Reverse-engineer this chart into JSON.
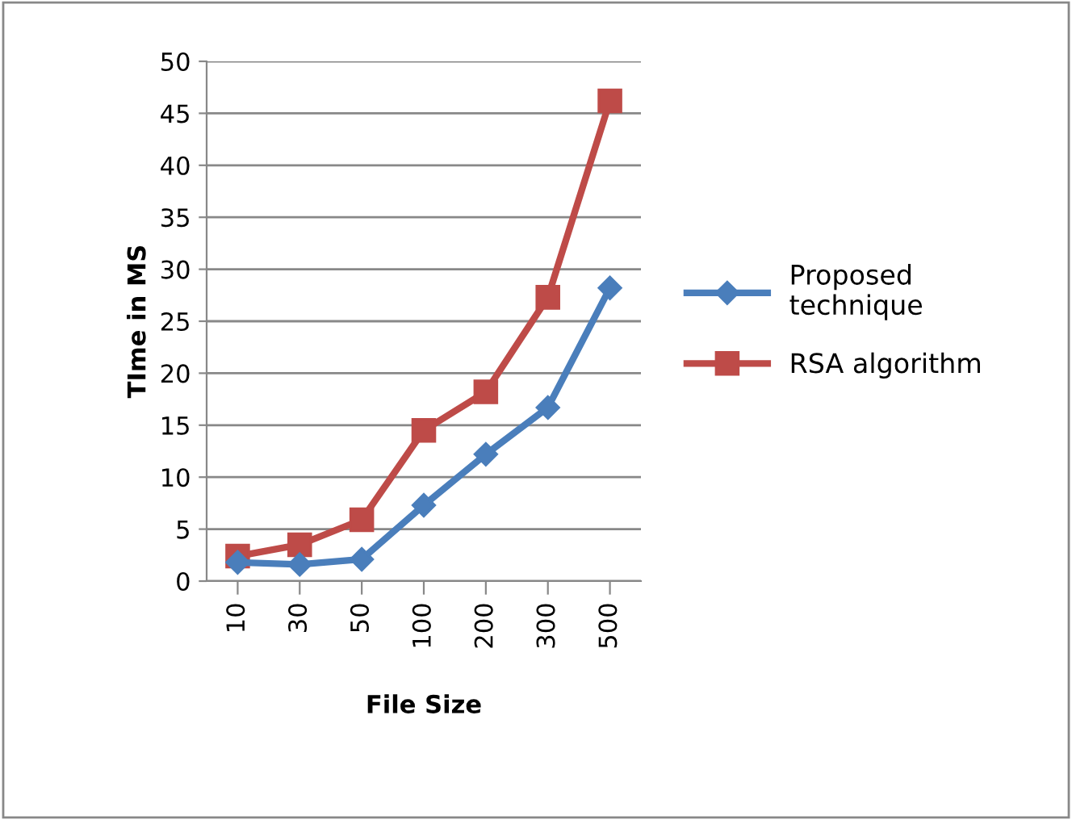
{
  "chart_data": {
    "type": "line",
    "xlabel": "File Size",
    "ylabel": "TIme in MS",
    "categories": [
      "10",
      "30",
      "50",
      "100",
      "200",
      "300",
      "500"
    ],
    "series": [
      {
        "name": "Proposed technique",
        "color": "#4a7ebb",
        "marker": "diamond",
        "values": [
          1.8,
          1.6,
          2.1,
          7.3,
          12.2,
          16.7,
          28.2
        ]
      },
      {
        "name": "RSA algorithm",
        "color": "#be4b48",
        "marker": "square",
        "values": [
          2.4,
          3.5,
          5.9,
          14.5,
          18.2,
          27.3,
          46.2
        ]
      }
    ],
    "ylim": [
      0,
      50
    ],
    "yticks": [
      0,
      5,
      10,
      15,
      20,
      25,
      30,
      35,
      40,
      45,
      50
    ],
    "grid": "y",
    "legend": "right"
  }
}
